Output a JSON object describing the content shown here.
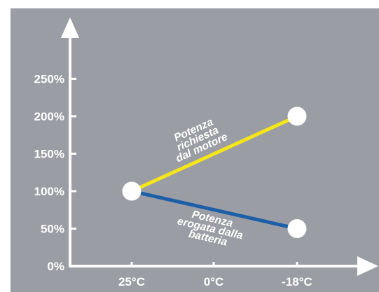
{
  "chart_data": {
    "type": "line",
    "categories": [
      "25°C",
      "0°C",
      "-18°C"
    ],
    "y_ticks": [
      "0%",
      "50%",
      "100%",
      "150%",
      "200%",
      "250%"
    ],
    "ylim": [
      0,
      250
    ],
    "grid": false,
    "series": [
      {
        "name_lines": [
          "Potenza",
          "richiesta",
          "dal motore"
        ],
        "points": [
          {
            "x": "25°C",
            "y": 100
          },
          {
            "x": "-18°C",
            "y": 200
          }
        ],
        "color": "#f5e51b"
      },
      {
        "name_lines": [
          "Potenza",
          "erogata dalla",
          "batteria"
        ],
        "points": [
          {
            "x": "25°C",
            "y": 100
          },
          {
            "x": "-18°C",
            "y": 50
          }
        ],
        "color": "#1c5ea8"
      }
    ]
  },
  "colors": {
    "background": "#9a9da3",
    "frame": "#ffffff",
    "axis": "#ffffff",
    "marker": "#ffffff"
  }
}
